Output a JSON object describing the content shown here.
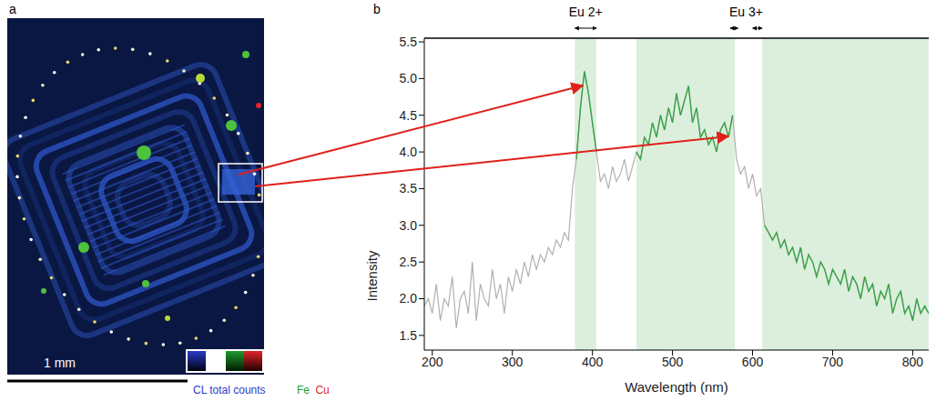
{
  "image_panel": {
    "label": "a",
    "scale_bar": "1 mm",
    "color_key": [
      {
        "text": "CL total counts",
        "color": "#2a3cc8"
      },
      {
        "text": "Fe",
        "color": "#1f9a2f"
      },
      {
        "text": "Cu",
        "color": "#e0242a"
      }
    ]
  },
  "chart_data": {
    "type": "line",
    "x_label": "Wavelength (nm)",
    "y_label": "Intensity",
    "annotations": [
      {
        "text": "b"
      },
      {
        "text": "Eu 2+",
        "ranges": [
          [
            378,
            405
          ]
        ]
      },
      {
        "text": "Eu 3+",
        "ranges": [
          [
            572,
            582
          ],
          [
            600,
            612
          ]
        ]
      }
    ],
    "x": [
      190,
      195,
      200,
      205,
      210,
      215,
      220,
      225,
      230,
      235,
      240,
      245,
      250,
      255,
      260,
      265,
      270,
      275,
      280,
      285,
      290,
      295,
      300,
      305,
      310,
      315,
      320,
      325,
      330,
      335,
      340,
      345,
      350,
      355,
      360,
      365,
      370,
      375,
      380,
      385,
      390,
      395,
      400,
      405,
      410,
      415,
      420,
      425,
      430,
      435,
      440,
      445,
      450,
      455,
      460,
      465,
      470,
      475,
      480,
      485,
      490,
      495,
      500,
      505,
      510,
      515,
      520,
      525,
      530,
      535,
      540,
      545,
      550,
      555,
      560,
      565,
      570,
      575,
      580,
      585,
      590,
      595,
      600,
      605,
      610,
      615,
      620,
      625,
      630,
      635,
      640,
      645,
      650,
      655,
      660,
      665,
      670,
      675,
      680,
      685,
      690,
      695,
      700,
      705,
      710,
      715,
      720,
      725,
      730,
      735,
      740,
      745,
      750,
      755,
      760,
      765,
      770,
      775,
      780,
      785,
      790,
      795,
      800,
      805,
      810,
      815,
      820
    ],
    "values": [
      1.9,
      2.0,
      1.8,
      2.2,
      1.7,
      2.0,
      1.9,
      2.3,
      1.6,
      2.0,
      2.1,
      1.8,
      2.5,
      1.7,
      2.2,
      2.0,
      1.9,
      2.4,
      2.0,
      2.2,
      1.8,
      2.3,
      2.1,
      2.4,
      2.2,
      2.5,
      2.3,
      2.6,
      2.4,
      2.6,
      2.5,
      2.7,
      2.6,
      2.8,
      2.7,
      2.9,
      2.8,
      3.5,
      3.9,
      4.6,
      5.1,
      4.8,
      4.4,
      4.0,
      3.6,
      3.7,
      3.5,
      3.8,
      3.6,
      3.7,
      3.9,
      3.6,
      3.8,
      4.0,
      3.9,
      4.2,
      4.1,
      4.4,
      4.2,
      4.5,
      4.3,
      4.6,
      4.4,
      4.8,
      4.5,
      4.7,
      4.9,
      4.4,
      4.6,
      4.2,
      4.3,
      4.1,
      4.2,
      4.0,
      4.3,
      4.4,
      4.2,
      4.5,
      3.9,
      3.7,
      3.8,
      3.5,
      3.7,
      3.4,
      3.5,
      3.0,
      2.9,
      2.8,
      2.9,
      2.7,
      2.8,
      2.6,
      2.7,
      2.5,
      2.7,
      2.4,
      2.6,
      2.5,
      2.3,
      2.5,
      2.4,
      2.2,
      2.4,
      2.3,
      2.2,
      2.4,
      2.1,
      2.3,
      2.2,
      2.0,
      2.3,
      2.1,
      2.2,
      1.9,
      2.1,
      2.0,
      2.2,
      1.8,
      2.0,
      2.1,
      1.8,
      1.9,
      1.7,
      2.0,
      1.8,
      1.9,
      1.8
    ],
    "color": "#b0b0b0",
    "highlight": {
      "ranges": [
        [
          378,
          405
        ],
        [
          455,
          578
        ],
        [
          612,
          820
        ]
      ],
      "color": "#38a447",
      "fill": "#dcefdd"
    },
    "xlim": [
      190,
      820
    ],
    "ylim": [
      1.3,
      5.55
    ],
    "xticks": [
      200,
      300,
      400,
      500,
      600,
      700,
      800
    ],
    "yticks": [
      1.5,
      {
        "value": 2,
        "label": "2.0"
      },
      2.5,
      {
        "value": 3,
        "label": "3.0"
      },
      3.5,
      {
        "value": 4,
        "label": "4.0"
      },
      4.5,
      {
        "value": 5,
        "label": "5.0"
      },
      5.5
    ],
    "grid": false
  }
}
